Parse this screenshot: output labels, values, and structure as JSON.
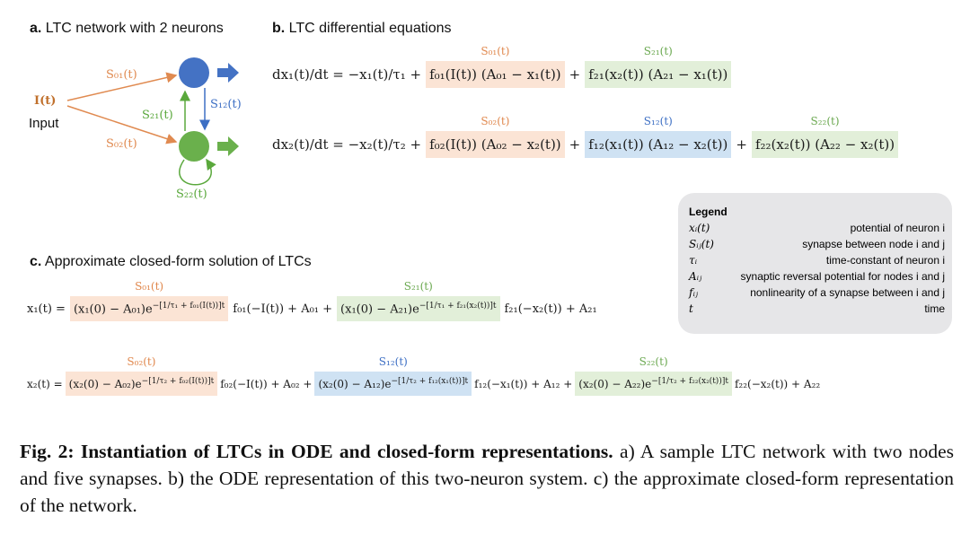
{
  "panel_a": {
    "title": "a. LTC network with 2 neurons",
    "labels": {
      "s01": "S₀₁(t)",
      "input_symbol": "I(t)",
      "input": "Input",
      "s21": "S₂₁(t)",
      "s12": "S₁₂(t)",
      "s02": "S₀₂(t)",
      "s22": "S₂₂(t)"
    }
  },
  "panel_b": {
    "title": "b. LTC differential equations",
    "equations": [
      [
        {
          "text": "dx₁(t)/dt = −x₁(t)/τ₁ +"
        },
        {
          "text": "f₀₁(I(t)) (A₀₁ − x₁(t))",
          "label": "S₀₁(t)",
          "highlight": "orange"
        },
        {
          "text": "+"
        },
        {
          "text": "f₂₁(x₂(t)) (A₂₁ − x₁(t))",
          "label": "S₂₁(t)",
          "highlight": "green"
        }
      ],
      [
        {
          "text": "dx₂(t)/dt = −x₂(t)/τ₂ +"
        },
        {
          "text": "f₀₂(I(t)) (A₀₂ − x₂(t))",
          "label": "S₀₂(t)",
          "highlight": "orange"
        },
        {
          "text": "+"
        },
        {
          "text": "f₁₂(x₁(t)) (A₁₂ − x₂(t))",
          "label": "S₁₂(t)",
          "highlight": "blue"
        },
        {
          "text": "+"
        },
        {
          "text": "f₂₂(x₂(t)) (A₂₂ − x₂(t))",
          "label": "S₂₂(t)",
          "highlight": "green"
        }
      ]
    ]
  },
  "legend": {
    "title": "Legend",
    "rows": [
      [
        "xᵢ(t)",
        "potential of neuron i"
      ],
      [
        "Sᵢⱼ(t)",
        "synapse between node i and j"
      ],
      [
        "τᵢ",
        "time-constant of neuron i"
      ],
      [
        "Aᵢⱼ",
        "synaptic reversal potential for nodes i and j"
      ],
      [
        "fᵢⱼ",
        "nonlinearity of a synapse between i and j"
      ],
      [
        "t",
        "time"
      ]
    ]
  },
  "panel_c": {
    "title": "c. Approximate closed-form solution of LTCs",
    "equations": [
      [
        {
          "text": "x₁(t) ="
        },
        {
          "text": "(x₁(0) − A₀₁)e",
          "sup": "−[1/τ₁ + f₀₁(I(t))]t",
          "label": "S₀₁(t)",
          "highlight": "orange"
        },
        {
          "text": "f₀₁(−I(t)) + A₀₁ +"
        },
        {
          "text": "(x₁(0) − A₂₁)e",
          "sup": "−[1/τ₁ + f₂₁(x₂(t))]t",
          "label": "S₂₁(t)",
          "highlight": "green"
        },
        {
          "text": "f₂₁(−x₂(t)) + A₂₁"
        }
      ],
      [
        {
          "text": "x₂(t) ="
        },
        {
          "text": "(x₂(0) − A₀₂)e",
          "sup": "−[1/τ₂ + f₀₂(I(t))]t",
          "label": "S₀₂(t)",
          "highlight": "orange"
        },
        {
          "text": "f₀₂(−I(t)) + A₀₂ +"
        },
        {
          "text": "(x₂(0) − A₁₂)e",
          "sup": "−[1/τ₂ + f₁₂(x₁(t))]t",
          "label": "S₁₂(t)",
          "highlight": "blue"
        },
        {
          "text": "f₁₂(−x₁(t)) + A₁₂ +"
        },
        {
          "text": "(x₂(0) − A₂₂)e",
          "sup": "−[1/τ₂ + f₂₂(x₂(t))]t",
          "label": "S₂₂(t)",
          "highlight": "green"
        },
        {
          "text": "f₂₂(−x₂(t)) + A₂₂"
        }
      ]
    ]
  },
  "caption": {
    "lead": "Fig. 2: Instantiation of LTCs in ODE and closed-form representations.",
    "body": "a) A sample LTC network with two nodes and five synapses. b) the ODE representation of this two-neuron system. c) the approximate closed-form representation of the network."
  }
}
